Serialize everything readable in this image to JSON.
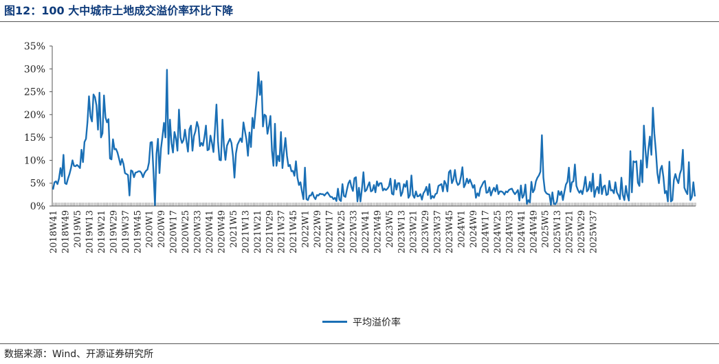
{
  "title": "图12：100 大中城市土地成交溢价率环比下降",
  "source": "数据来源：Wind、开源证券研究所",
  "colors": {
    "series": "#1a6fb5",
    "axis": "#555555",
    "title": "#0d3a7a"
  },
  "chart_data": {
    "type": "line",
    "title": "",
    "xlabel": "",
    "ylabel": "",
    "ylim": [
      0,
      35
    ],
    "yticks": [
      "0%",
      "5%",
      "10%",
      "15%",
      "20%",
      "25%",
      "30%",
      "35%"
    ],
    "grid": false,
    "legend_position": "bottom",
    "x_tick_labels": [
      "2018W41",
      "2018W49",
      "2019W5",
      "2019W13",
      "2019W21",
      "2019W29",
      "2019W37",
      "2019W45",
      "2020W1",
      "2020W9",
      "2020W17",
      "2020W25",
      "2020W33",
      "2020W41",
      "2020W49",
      "2021W5",
      "2021W13",
      "2021W21",
      "2021W29",
      "2021W37",
      "2021W45",
      "2022W1",
      "2022W9",
      "2022W17",
      "2022W25",
      "2022W33",
      "2022W41",
      "2022W49",
      "2023W5",
      "2023W13",
      "2023W21",
      "2023W29",
      "2023W37",
      "2023W45",
      "2024W1",
      "2024W9",
      "2024W17",
      "2024W25",
      "2024W33",
      "2024W41",
      "2024W49",
      "2025W5",
      "2025W13",
      "2025W21",
      "2025W29",
      "2025W37"
    ],
    "series": [
      {
        "name": "平均溢价率",
        "values": [
          3.6,
          5.2,
          5.4,
          4.8,
          6.0,
          8.3,
          6.5,
          11.2,
          5.0,
          4.8,
          6.0,
          7.0,
          8.3,
          10.0,
          8.8,
          8.7,
          9.0,
          8.7,
          8.3,
          12.3,
          9.6,
          14.0,
          14.7,
          18.4,
          24.0,
          19.6,
          18.5,
          24.4,
          23.8,
          22.0,
          16.7,
          24.8,
          15.0,
          15.9,
          24.2,
          19.4,
          18.3,
          19.0,
          10.4,
          10.2,
          14.6,
          12.4,
          12.5,
          11.7,
          10.4,
          9.0,
          10.3,
          9.2,
          7.2,
          7.0,
          6.8,
          2.3,
          7.8,
          7.6,
          6.3,
          7.3,
          7.4,
          7.6,
          7.6,
          7.2,
          6.3,
          7.2,
          7.7,
          8.0,
          9.5,
          13.9,
          14.0,
          7.5,
          0.2,
          11.4,
          14.7,
          7.2,
          12.6,
          15.2,
          18.2,
          15.0,
          29.8,
          11.4,
          18.9,
          13.8,
          11.7,
          16.2,
          14.8,
          12.1,
          21.1,
          15.0,
          13.8,
          14.4,
          16.7,
          14.2,
          11.9,
          16.8,
          17.6,
          12.1,
          15.3,
          16.4,
          18.4,
          17.2,
          13.1,
          13.8,
          13.2,
          15.1,
          17.6,
          12.2,
          12.4,
          15.4,
          13.8,
          11.8,
          16.8,
          22.2,
          14.2,
          10.1,
          10.0,
          18.9,
          13.1,
          10.1,
          13.2,
          14.0,
          14.7,
          13.8,
          11.0,
          6.2,
          11.5,
          13.4,
          14.1,
          14.8,
          14.0,
          18.3,
          16.4,
          14.5,
          11.0,
          16.1,
          12.9,
          19.3,
          17.0,
          20.7,
          24.1,
          29.3,
          24.3,
          27.3,
          17.4,
          20.0,
          19.7,
          15.8,
          17.5,
          19.7,
          12.1,
          8.8,
          18.0,
          8.8,
          11.0,
          9.8,
          16.2,
          8.3,
          12.0,
          14.9,
          11.0,
          8.7,
          9.0,
          7.6,
          7.7,
          6.6,
          9.8,
          6.2,
          4.6,
          5.2,
          3.2,
          1.5,
          8.4,
          1.5,
          1.3,
          2.3,
          2.3,
          3.0,
          2.0,
          1.5,
          2.4,
          2.3,
          2.7,
          2.6,
          2.6,
          2.3,
          2.7,
          3.0,
          2.5,
          2.0,
          2.0,
          1.5,
          1.8,
          1.1,
          3.8,
          1.4,
          1.1,
          4.8,
          2.2,
          2.0,
          3.6,
          5.0,
          5.6,
          4.2,
          3.3,
          6.1,
          6.3,
          1.0,
          4.0,
          1.0,
          3.8,
          7.4,
          3.2,
          3.5,
          4.4,
          5.2,
          3.2,
          3.4,
          4.6,
          3.0,
          5.4,
          4.4,
          5.0,
          5.0,
          3.4,
          3.8,
          3.5,
          3.8,
          4.3,
          6.0,
          2.7,
          2.5,
          5.7,
          3.6,
          5.0,
          5.0,
          2.2,
          3.0,
          4.8,
          4.2,
          5.5,
          1.8,
          2.4,
          6.7,
          2.4,
          1.8,
          3.2,
          2.1,
          2.2,
          2.6,
          1.4,
          2.8,
          3.3,
          4.2,
          2.4,
          4.8,
          1.6,
          2.2,
          1.8,
          2.6,
          2.8,
          4.4,
          4.6,
          4.8,
          3.2,
          5.5,
          4.8,
          3.2,
          7.4,
          7.8,
          5.0,
          5.8,
          7.9,
          5.4,
          4.6,
          4.9,
          6.4,
          8.5,
          4.1,
          4.8,
          6.0,
          5.0,
          5.8,
          5.0,
          4.0,
          4.6,
          1.8,
          2.8,
          2.2,
          3.9,
          4.5,
          5.2,
          5.5,
          2.9,
          3.0,
          4.1,
          2.3,
          3.3,
          4.0,
          3.2,
          4.6,
          2.6,
          3.2,
          3.2,
          3.0,
          2.5,
          3.2,
          3.0,
          3.5,
          3.7,
          3.8,
          3.1,
          2.6,
          3.0,
          3.5,
          1.2,
          4.5,
          1.8,
          2.4,
          4.7,
          0.5,
          1.3,
          0.8,
          5.3,
          3.0,
          3.6,
          5.4,
          6.2,
          6.7,
          7.5,
          15.5,
          6.2,
          3.3,
          2.8,
          2.6,
          2.5,
          0.3,
          3.0,
          0.5,
          0.4,
          1.0,
          3.3,
          2.4,
          3.2,
          1.3,
          3.1,
          4.7,
          5.3,
          8.4,
          3.1,
          5.2,
          5.4,
          9.1,
          4.4,
          3.5,
          2.9,
          3.4,
          2.6,
          4.2,
          6.4,
          3.2,
          3.6,
          5.3,
          3.2,
          7.1,
          2.0,
          3.5,
          4.2,
          2.8,
          6.9,
          2.6,
          4.2,
          4.5,
          2.4,
          2.6,
          5.5,
          3.4,
          3.5,
          2.8,
          5.2,
          3.0,
          2.4,
          1.5,
          6.2,
          2.4,
          1.3,
          4.4,
          2.4,
          1.2,
          12.0,
          3.0,
          9.8,
          9.6,
          9.8,
          5.1,
          4.4,
          10.0,
          5.2,
          17.6,
          12.4,
          8.4,
          12.4,
          15.2,
          11.2,
          21.5,
          15.8,
          12.0,
          7.2,
          5.0,
          8.0,
          8.8,
          6.4,
          2.8,
          3.3,
          1.0,
          9.7,
          1.0,
          1.3,
          5.7,
          7.0,
          5.8,
          5.0,
          7.0,
          8.0,
          12.3,
          4.0,
          3.2,
          2.6,
          9.6,
          1.3,
          2.0,
          5.2,
          2.1
        ]
      }
    ]
  }
}
